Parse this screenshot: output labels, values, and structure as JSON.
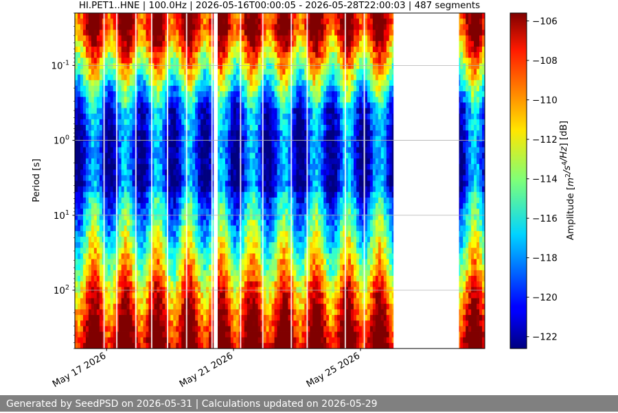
{
  "chart_data": {
    "type": "heatmap",
    "title": "HI.PET1..HNE | 100.0Hz | 2026-05-16T00:00:05 - 2026-05-28T22:00:03 | 487 segments",
    "ylabel": "Period [s]",
    "y_scale": "log",
    "y_inverted": true,
    "ylim": [
      0.02,
      600
    ],
    "y_ticks": [
      {
        "value": 0.1,
        "label": "10^-1"
      },
      {
        "value": 1,
        "label": "10^0"
      },
      {
        "value": 10,
        "label": "10^1"
      },
      {
        "value": 100,
        "label": "10^2"
      }
    ],
    "x_range": [
      "2026-05-16T00:00:05",
      "2026-05-28T22:00:03"
    ],
    "x_ticks": [
      {
        "date": "2026-05-17",
        "label": "May 17 2026"
      },
      {
        "date": "2026-05-21",
        "label": "May 21 2026"
      },
      {
        "date": "2026-05-25",
        "label": "May 25 2026"
      }
    ],
    "segments": 487,
    "grid": true,
    "data_gaps": [
      {
        "start": "2026-05-20T09:00",
        "end": "2026-05-20T12:00"
      },
      {
        "start": "2026-05-26T01:00",
        "end": "2026-05-28T02:30"
      }
    ],
    "thin_gaps_days": [
      16.9,
      17.3,
      17.9,
      18.4,
      18.9,
      19.5,
      20.3,
      21.2,
      21.9,
      22.8,
      23.3,
      24.5,
      25.1
    ],
    "colorbar": {
      "label_prefix": "Amplitude [",
      "label_math": "m^2/s^4/Hz",
      "label_suffix": "] [dB]",
      "vmin": -122.6,
      "vmax": -105.6,
      "ticks": [
        -106,
        -108,
        -110,
        -112,
        -114,
        -116,
        -118,
        -120,
        -122
      ],
      "colormap": "jet"
    }
  },
  "footer": {
    "text": "Generated by SeedPSD on 2026-05-31 | Calculations updated on 2026-05-29"
  }
}
